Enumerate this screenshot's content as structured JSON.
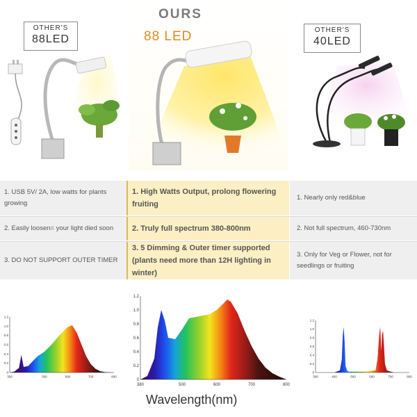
{
  "left_product": {
    "tag_line1": "OTHER'S",
    "tag_line2": "88LED"
  },
  "center_product": {
    "heading": "OURS",
    "subheading": "88 LED"
  },
  "right_product": {
    "tag_line1": "OTHER'S",
    "tag_line2": "40LED"
  },
  "table": {
    "rows": [
      {
        "left": "1. USB 5V/ 2A, low watts for plants growing",
        "center": "1. High Watts Output, prolong flowering fruiting",
        "right": "1. Nearly only red&blue"
      },
      {
        "left": "2. Easily loosen= your light died soon",
        "center": "2. Truly full spectrum 380-800nm",
        "right": "2. Not full spectrum, 460-730nm"
      },
      {
        "left": "3. DO NOT SUPPORT OUTER TIMER",
        "center": "3. 5 Dimming & Outer timer supported (plants need more than 12H lighting in winter)",
        "right": "3. Only for Veg or Flower, not for seedlings or fruiting"
      }
    ]
  },
  "footer": {
    "xlabel": "Wavelength(nm)"
  },
  "chart_data": [
    {
      "type": "area",
      "name": "left",
      "x": [
        350,
        370,
        390,
        400,
        410,
        430,
        450,
        470,
        500,
        530,
        560,
        600,
        620,
        640,
        660,
        680,
        700,
        720,
        740,
        760,
        800
      ],
      "y": [
        0.0,
        0.02,
        0.1,
        0.38,
        0.12,
        0.14,
        0.25,
        0.35,
        0.45,
        0.6,
        0.78,
        0.98,
        1.02,
        0.85,
        0.6,
        0.35,
        0.18,
        0.08,
        0.03,
        0.01,
        0.0
      ],
      "xticks": [
        "350",
        "500",
        "600",
        "700",
        "800"
      ],
      "yticks": [
        "0",
        "0.2",
        "0.4",
        "0.6",
        "0.8",
        "1.0",
        "1.2"
      ],
      "xlim": [
        350,
        800
      ],
      "ylim": [
        0,
        1.2
      ]
    },
    {
      "type": "area",
      "name": "center",
      "x": [
        380,
        400,
        420,
        430,
        440,
        450,
        460,
        480,
        500,
        520,
        540,
        560,
        580,
        600,
        620,
        630,
        640,
        660,
        680,
        700,
        720,
        740,
        760,
        780,
        800
      ],
      "y": [
        0.0,
        0.05,
        0.3,
        0.75,
        1.0,
        0.85,
        0.6,
        0.58,
        0.72,
        0.88,
        0.9,
        0.92,
        0.94,
        1.0,
        1.1,
        1.15,
        1.12,
        0.95,
        0.7,
        0.48,
        0.3,
        0.17,
        0.09,
        0.04,
        0.0
      ],
      "xticks": [
        "380",
        "500",
        "600",
        "700",
        "800"
      ],
      "yticks": [
        "0",
        "0.2",
        "0.4",
        "0.6",
        "0.8",
        "1.0",
        "1.2"
      ],
      "xlim": [
        380,
        800
      ],
      "ylim": [
        0,
        1.2
      ]
    },
    {
      "type": "area",
      "name": "right",
      "x": [
        340,
        400,
        430,
        440,
        445,
        450,
        455,
        460,
        470,
        480,
        500,
        560,
        600,
        620,
        630,
        640,
        645,
        650,
        655,
        660,
        665,
        670,
        680,
        700,
        720,
        740,
        800
      ],
      "y": [
        0.0,
        0.0,
        0.05,
        0.3,
        0.85,
        1.05,
        0.7,
        0.15,
        0.03,
        0.02,
        0.02,
        0.02,
        0.04,
        0.05,
        0.3,
        0.9,
        1.05,
        0.5,
        0.9,
        0.95,
        0.6,
        0.2,
        0.05,
        0.02,
        0.0,
        0.0,
        0.0
      ],
      "xticks": [
        "300",
        "400",
        "500",
        "600",
        "700",
        "800"
      ],
      "yticks": [
        "0",
        "0.2",
        "0.4",
        "0.6",
        "0.8",
        "1.0",
        "1.2"
      ],
      "xlim": [
        300,
        800
      ],
      "ylim": [
        0,
        1.2
      ]
    }
  ]
}
